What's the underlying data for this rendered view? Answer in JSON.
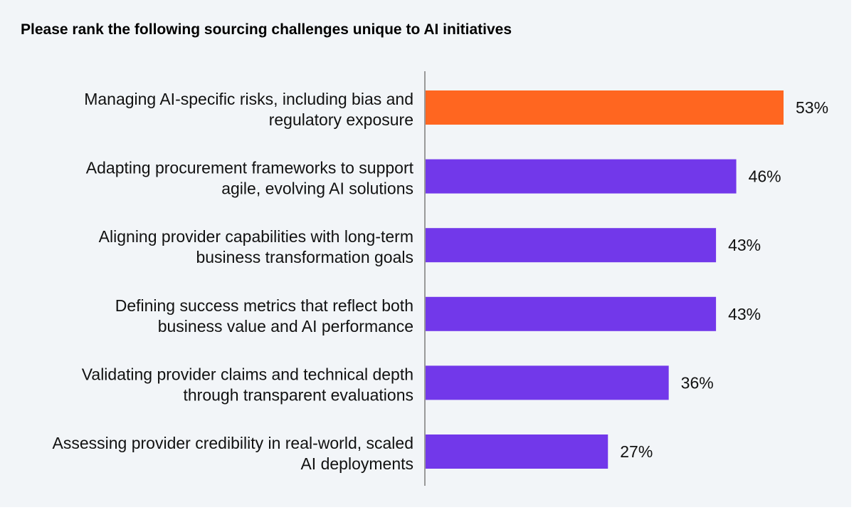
{
  "chart_data": {
    "type": "bar",
    "orientation": "horizontal",
    "title": "Please rank the following sourcing challenges unique to AI initiatives",
    "categories": [
      [
        "Managing AI-specific risks, including bias and",
        "regulatory exposure"
      ],
      [
        "Adapting procurement frameworks to support",
        "agile, evolving AI solutions"
      ],
      [
        "Aligning provider capabilities with long-term",
        "business transformation goals"
      ],
      [
        "Defining success metrics that reflect both",
        "business value and AI performance"
      ],
      [
        "Validating provider claims and technical depth",
        "through transparent evaluations"
      ],
      [
        "Assessing provider credibility in real-world, scaled",
        "AI deployments"
      ]
    ],
    "values": [
      53,
      46,
      43,
      43,
      36,
      27
    ],
    "value_labels": [
      "53%",
      "46%",
      "43%",
      "43%",
      "36%",
      "27%"
    ],
    "colors": [
      "#ff6620",
      "#7238ea",
      "#7238ea",
      "#7238ea",
      "#7238ea",
      "#7238ea"
    ],
    "highlight_color": "#ff6620",
    "bar_color": "#7238ea",
    "axis_color": "#999999",
    "grid": false,
    "legend": "none",
    "xlim": [
      0,
      53
    ]
  }
}
